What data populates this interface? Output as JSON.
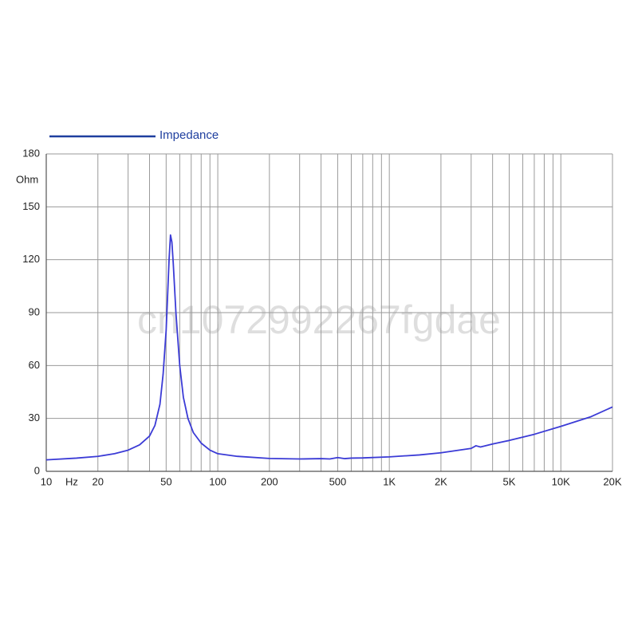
{
  "chart_data": {
    "type": "line",
    "x_unit": "Hz",
    "y_unit": "Ohm",
    "watermark": "cn1072992267fgdae",
    "xscale": "log",
    "grid": true,
    "xlim": [
      10,
      20000
    ],
    "ylim": [
      0,
      180
    ],
    "xticks": [
      10,
      20,
      50,
      100,
      200,
      500,
      {
        "value": 1000,
        "label": "1K"
      },
      {
        "value": 2000,
        "label": "2K"
      },
      {
        "value": 5000,
        "label": "5K"
      },
      {
        "value": 10000,
        "label": "10K"
      },
      {
        "value": 20000,
        "label": "20K"
      }
    ],
    "xminor": [
      30,
      40,
      60,
      70,
      80,
      90,
      300,
      400,
      600,
      700,
      800,
      900,
      3000,
      4000,
      6000,
      7000,
      8000,
      9000
    ],
    "yticks": [
      0,
      30,
      60,
      90,
      120,
      150,
      180
    ],
    "legend_color": "#1f3f9f",
    "x": [
      10,
      15,
      20,
      25,
      30,
      35,
      40,
      43,
      46,
      48,
      50,
      51,
      52,
      53,
      54,
      55,
      57,
      60,
      63,
      67,
      72,
      80,
      90,
      100,
      130,
      200,
      300,
      400,
      450,
      500,
      550,
      600,
      700,
      1000,
      1500,
      2000,
      3000,
      3200,
      3400,
      4000,
      5000,
      7000,
      10000,
      15000,
      20000
    ],
    "series": [
      {
        "name": "Impedance",
        "color": "#3b3bd6",
        "values": [
          6.5,
          7.5,
          8.5,
          10,
          12,
          15,
          20,
          26,
          38,
          55,
          80,
          100,
          120,
          134,
          130,
          118,
          90,
          60,
          42,
          30,
          22,
          16,
          12,
          10,
          8.5,
          7.3,
          7,
          7.2,
          7,
          7.8,
          7.2,
          7.5,
          7.6,
          8.2,
          9.3,
          10.5,
          13,
          14.5,
          13.8,
          15.5,
          17.5,
          21,
          25.5,
          31,
          36.5
        ]
      }
    ]
  }
}
